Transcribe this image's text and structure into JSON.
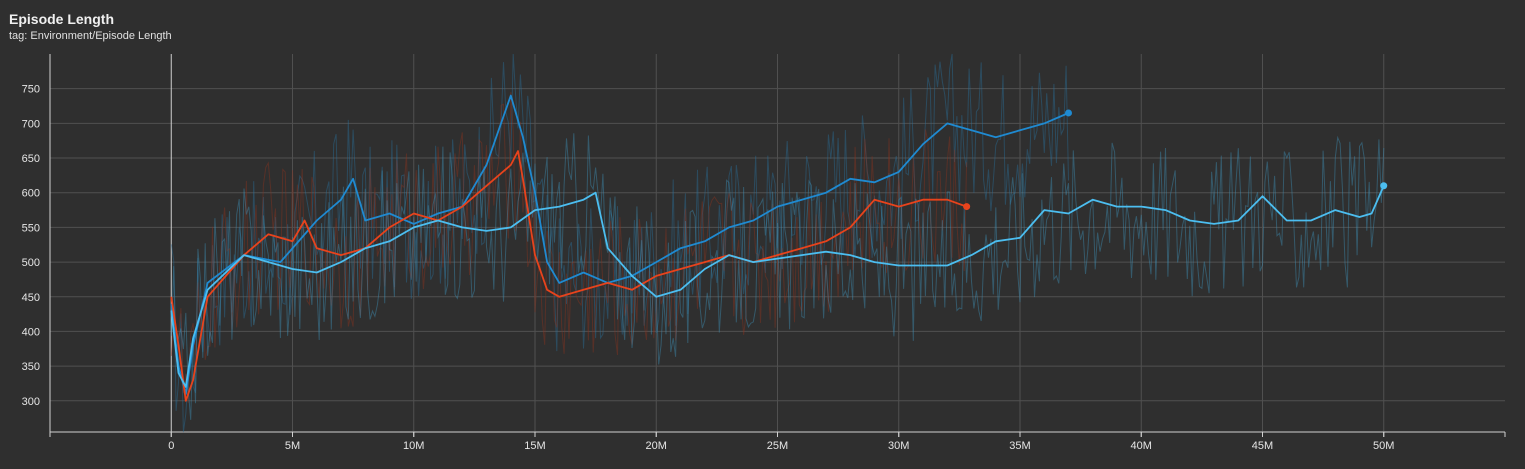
{
  "header": {
    "title": "Episode Length",
    "subtitle": "tag: Environment/Episode Length"
  },
  "chart_data": {
    "type": "line",
    "title": "Episode Length",
    "subtitle": "tag: Environment/Episode Length",
    "xlabel": "",
    "ylabel": "",
    "xlim": [
      -5000000,
      55000000
    ],
    "ylim": [
      255,
      800
    ],
    "x_ticks": [
      0,
      5000000,
      10000000,
      15000000,
      20000000,
      25000000,
      30000000,
      35000000,
      40000000,
      45000000,
      50000000
    ],
    "x_tick_labels": [
      "0",
      "5M",
      "10M",
      "15M",
      "20M",
      "25M",
      "30M",
      "35M",
      "40M",
      "45M",
      "50M"
    ],
    "y_ticks": [
      300,
      350,
      400,
      450,
      500,
      550,
      600,
      650,
      700,
      750
    ],
    "y_tick_labels": [
      "300",
      "350",
      "400",
      "450",
      "500",
      "550",
      "600",
      "650",
      "700",
      "750"
    ],
    "grid": true,
    "legend": "none",
    "series": [
      {
        "color": "#1f8ad1",
        "x": [
          0,
          300000,
          600000,
          900000,
          1500000,
          3000000,
          4500000,
          6000000,
          7000000,
          7500000,
          8000000,
          9000000,
          10000000,
          11000000,
          12000000,
          13000000,
          13500000,
          14000000,
          14500000,
          15000000,
          15500000,
          16000000,
          17000000,
          18000000,
          19000000,
          20000000,
          21000000,
          22000000,
          23000000,
          24000000,
          25000000,
          26000000,
          27000000,
          28000000,
          29000000,
          30000000,
          31000000,
          32000000,
          33000000,
          34000000,
          35000000,
          36000000,
          37000000
        ],
        "y": [
          440,
          350,
          310,
          380,
          470,
          510,
          500,
          560,
          590,
          620,
          560,
          570,
          555,
          570,
          580,
          640,
          690,
          740,
          680,
          600,
          500,
          470,
          485,
          470,
          480,
          500,
          520,
          530,
          550,
          560,
          580,
          590,
          600,
          620,
          615,
          630,
          670,
          700,
          690,
          680,
          690,
          700,
          715
        ]
      },
      {
        "color": "#e8431c",
        "x": [
          0,
          300000,
          600000,
          900000,
          1500000,
          3000000,
          4000000,
          5000000,
          5500000,
          6000000,
          7000000,
          8000000,
          9000000,
          10000000,
          11000000,
          12000000,
          13000000,
          14000000,
          14300000,
          14500000,
          15000000,
          15500000,
          16000000,
          17000000,
          18000000,
          19000000,
          20000000,
          21000000,
          22000000,
          23000000,
          24000000,
          25000000,
          26000000,
          27000000,
          28000000,
          29000000,
          30000000,
          31000000,
          32000000,
          32800000
        ],
        "y": [
          450,
          380,
          300,
          330,
          450,
          510,
          540,
          530,
          560,
          520,
          510,
          520,
          550,
          570,
          560,
          580,
          610,
          640,
          660,
          620,
          510,
          460,
          450,
          460,
          470,
          460,
          480,
          490,
          500,
          510,
          500,
          510,
          520,
          530,
          550,
          590,
          580,
          590,
          590,
          580
        ]
      },
      {
        "color": "#4cbef0",
        "x": [
          0,
          300000,
          600000,
          900000,
          1500000,
          3000000,
          5000000,
          6000000,
          7000000,
          8000000,
          9000000,
          10000000,
          11000000,
          12000000,
          13000000,
          14000000,
          15000000,
          16000000,
          17000000,
          17500000,
          18000000,
          19000000,
          20000000,
          21000000,
          22000000,
          23000000,
          24000000,
          25000000,
          26000000,
          27000000,
          28000000,
          29000000,
          30000000,
          31000000,
          32000000,
          33000000,
          34000000,
          35000000,
          36000000,
          37000000,
          38000000,
          39000000,
          40000000,
          41000000,
          42000000,
          43000000,
          44000000,
          45000000,
          46000000,
          47000000,
          48000000,
          49000000,
          49500000,
          50000000
        ],
        "y": [
          430,
          340,
          320,
          390,
          460,
          510,
          490,
          485,
          500,
          520,
          530,
          550,
          560,
          550,
          545,
          550,
          575,
          580,
          590,
          600,
          520,
          480,
          450,
          460,
          490,
          510,
          500,
          505,
          510,
          515,
          510,
          500,
          495,
          495,
          495,
          510,
          530,
          535,
          575,
          570,
          590,
          580,
          580,
          575,
          560,
          555,
          560,
          595,
          560,
          560,
          575,
          565,
          570,
          610
        ]
      }
    ]
  }
}
